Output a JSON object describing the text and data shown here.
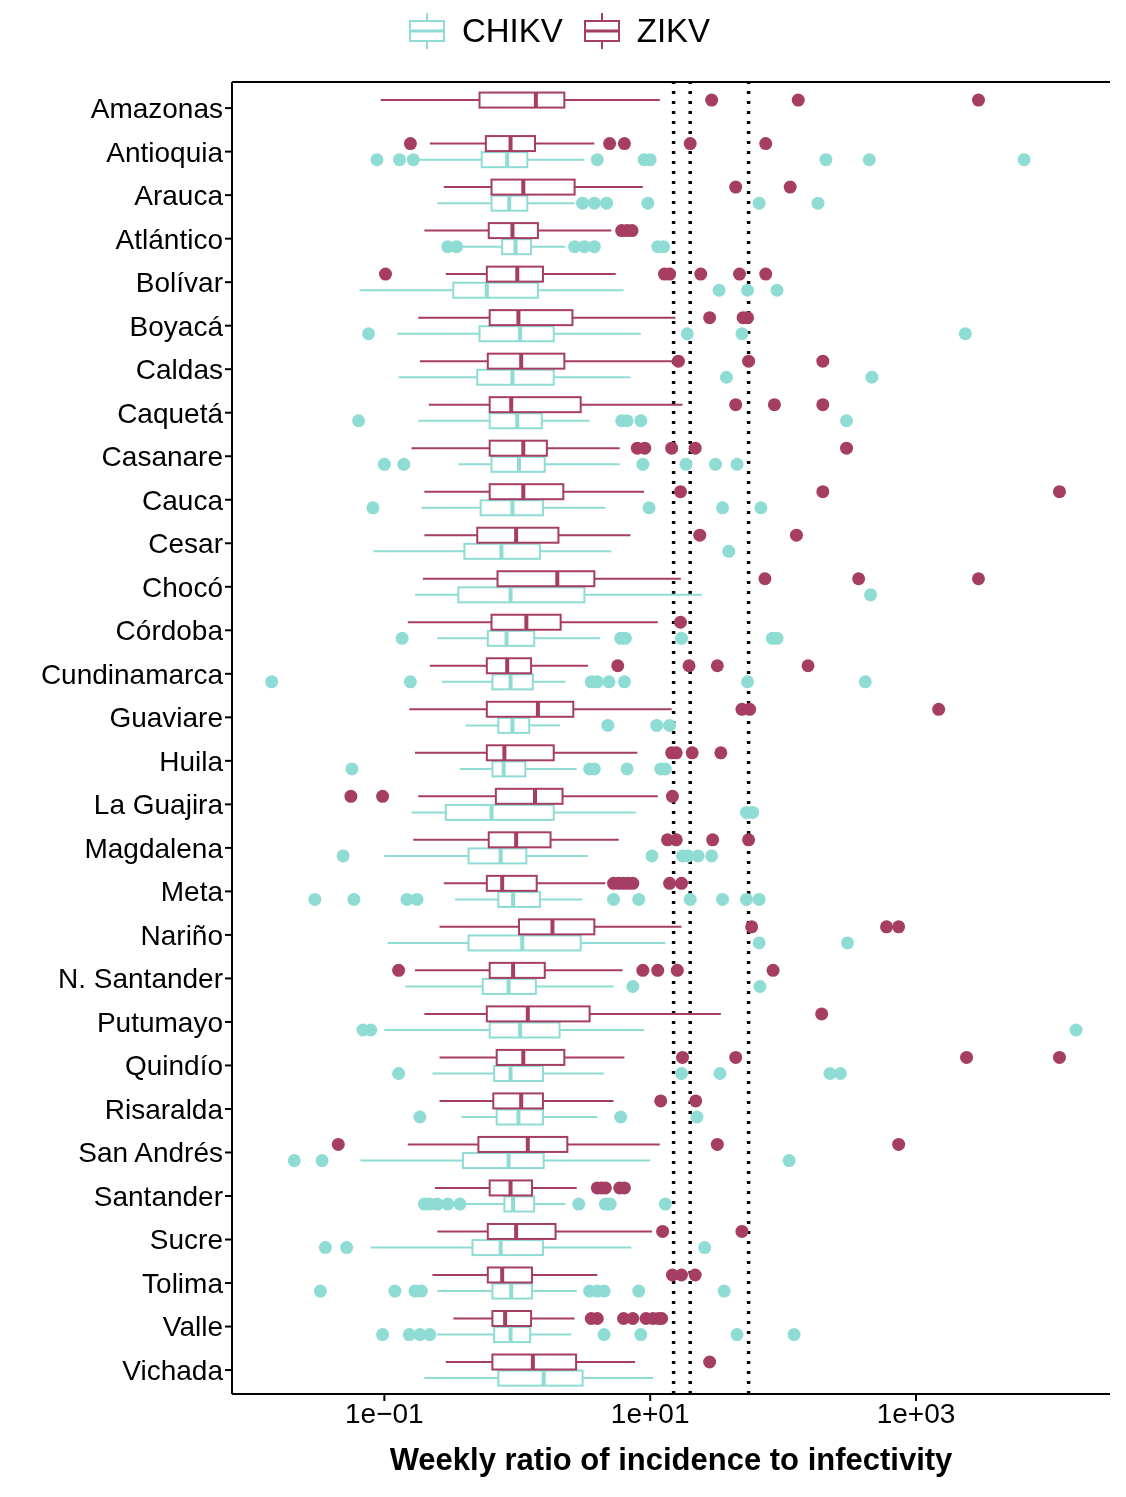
{
  "chart_data": {
    "type": "box",
    "orientation": "horizontal",
    "log": "x",
    "xlabel": "Weekly ratio of incidence to infectivity",
    "legend": "top",
    "xlim": [
      0.00714,
      28800
    ],
    "xticks": [
      {
        "value": 0.1,
        "label": "1e−01"
      },
      {
        "value": 10,
        "label": "1e+01"
      },
      {
        "value": 1000,
        "label": "1e+03"
      }
    ],
    "categories": [
      "Amazonas",
      "Antioquia",
      "Arauca",
      "Atlántico",
      "Bolívar",
      "Boyacá",
      "Caldas",
      "Caquetá",
      "Casanare",
      "Cauca",
      "Cesar",
      "Chocó",
      "Córdoba",
      "Cundinamarca",
      "Guaviare",
      "Huila",
      "La Guajira",
      "Magdalena",
      "Meta",
      "Nariño",
      "N. Santander",
      "Putumayo",
      "Quindío",
      "Risaralda",
      "San Andrés",
      "Santander",
      "Sucre",
      "Tolima",
      "Valle",
      "Vichada"
    ],
    "ref_lines": [
      {
        "axis": "x",
        "value": 15,
        "line_style": "dotted",
        "color": "#000000"
      },
      {
        "axis": "x",
        "value": 20,
        "line_style": "dotted",
        "color": "#000000"
      },
      {
        "axis": "x",
        "value": 55,
        "line_style": "dotted",
        "color": "#000000"
      }
    ],
    "series": [
      {
        "name": "CHIKV",
        "color": "#8fdcd5",
        "boxes": [
          null,
          {
            "low": 0.18,
            "q1": 0.54,
            "median": 0.84,
            "q3": 1.19,
            "high": 3.2,
            "outliers": [
              0.088,
              0.13,
              0.165,
              4.0,
              9.0,
              10,
              210,
              445,
              6500
            ]
          },
          {
            "low": 0.25,
            "q1": 0.64,
            "median": 0.87,
            "q3": 1.19,
            "high": 2.7,
            "outliers": [
              3.1,
              3.8,
              4.7,
              9.6,
              66,
              183
            ]
          },
          {
            "low": 0.28,
            "q1": 0.77,
            "median": 0.97,
            "q3": 1.27,
            "high": 2.3,
            "outliers": [
              0.3,
              0.35,
              2.7,
              3.2,
              3.8,
              11.4,
              12.6
            ]
          },
          {
            "low": 0.065,
            "q1": 0.33,
            "median": 0.59,
            "q3": 1.43,
            "high": 6.3,
            "outliers": [
              33,
              54,
              90
            ]
          },
          {
            "low": 0.125,
            "q1": 0.52,
            "median": 1.05,
            "q3": 1.88,
            "high": 8.5,
            "outliers": [
              0.076,
              19,
              49,
              2350
            ]
          },
          {
            "low": 0.128,
            "q1": 0.5,
            "median": 0.92,
            "q3": 1.88,
            "high": 7.1,
            "outliers": [
              37.5,
              465
            ]
          },
          {
            "low": 0.18,
            "q1": 0.62,
            "median": 1.0,
            "q3": 1.53,
            "high": 3.5,
            "outliers": [
              0.064,
              6.1,
              6.7,
              8.5,
              300
            ]
          },
          {
            "low": 0.36,
            "q1": 0.64,
            "median": 1.03,
            "q3": 1.61,
            "high": 5.9,
            "outliers": [
              0.1,
              0.14,
              8.8,
              18.6,
              31,
              45
            ]
          },
          {
            "low": 0.19,
            "q1": 0.53,
            "median": 0.92,
            "q3": 1.56,
            "high": 4.6,
            "outliers": [
              0.082,
              9.8,
              35,
              68
            ]
          },
          {
            "low": 0.083,
            "q1": 0.4,
            "median": 0.76,
            "q3": 1.48,
            "high": 5.1,
            "outliers": [
              39
            ]
          },
          {
            "low": 0.17,
            "q1": 0.36,
            "median": 0.89,
            "q3": 3.2,
            "high": 24.5,
            "outliers": [
              455
            ]
          },
          {
            "low": 0.25,
            "q1": 0.6,
            "median": 0.83,
            "q3": 1.34,
            "high": 4.2,
            "outliers": [
              0.136,
              6.0,
              6.5,
              17.2,
              83,
              90
            ]
          },
          {
            "low": 0.27,
            "q1": 0.65,
            "median": 0.89,
            "q3": 1.31,
            "high": 2.3,
            "outliers": [
              0.0142,
              0.157,
              3.6,
              4.0,
              4.9,
              6.4,
              54,
              415
            ]
          },
          {
            "low": 0.41,
            "q1": 0.72,
            "median": 0.92,
            "q3": 1.23,
            "high": 2.1,
            "outliers": [
              4.8,
              11.2,
              14
            ]
          },
          {
            "low": 0.37,
            "q1": 0.65,
            "median": 0.79,
            "q3": 1.15,
            "high": 2.8,
            "outliers": [
              0.057,
              3.5,
              3.8,
              6.7,
              12,
              13
            ]
          },
          {
            "low": 0.16,
            "q1": 0.29,
            "median": 0.64,
            "q3": 1.88,
            "high": 7.8,
            "outliers": [
              53,
              59
            ]
          },
          {
            "low": 0.1,
            "q1": 0.43,
            "median": 0.75,
            "q3": 1.17,
            "high": 3.4,
            "outliers": [
              0.049,
              10.3,
              17.5,
              19.3,
              22.9,
              29
            ]
          },
          {
            "low": 0.34,
            "q1": 0.72,
            "median": 0.93,
            "q3": 1.48,
            "high": 3.1,
            "outliers": [
              0.03,
              0.059,
              0.148,
              0.176,
              5.3,
              8.2,
              20,
              35,
              53,
              66
            ]
          },
          {
            "low": 0.106,
            "q1": 0.43,
            "median": 1.09,
            "q3": 3.0,
            "high": 13,
            "outliers": [
              66,
              305
            ]
          },
          {
            "low": 0.143,
            "q1": 0.55,
            "median": 0.86,
            "q3": 1.38,
            "high": 5.3,
            "outliers": [
              7.4,
              67
            ]
          },
          {
            "low": 0.1,
            "q1": 0.62,
            "median": 1.05,
            "q3": 2.08,
            "high": 9.0,
            "outliers": [
              0.069,
              0.079,
              16000
            ]
          },
          {
            "low": 0.23,
            "q1": 0.67,
            "median": 0.89,
            "q3": 1.56,
            "high": 4.5,
            "outliers": [
              0.128,
              17.2,
              33.5,
              225,
              270
            ]
          },
          {
            "low": 0.38,
            "q1": 0.7,
            "median": 1.02,
            "q3": 1.56,
            "high": 4.0,
            "outliers": [
              0.185,
              6.0,
              22.5
            ]
          },
          {
            "low": 0.066,
            "q1": 0.39,
            "median": 0.86,
            "q3": 1.58,
            "high": 10,
            "outliers": [
              0.021,
              0.034,
              111
            ]
          },
          {
            "low": 0.41,
            "q1": 0.8,
            "median": 0.93,
            "q3": 1.34,
            "high": 2.3,
            "outliers": [
              0.2,
              0.22,
              0.25,
              0.3,
              0.37,
              2.9,
              4.6,
              5.0,
              13
            ]
          },
          {
            "low": 0.079,
            "q1": 0.46,
            "median": 0.75,
            "q3": 1.56,
            "high": 7.2,
            "outliers": [
              0.036,
              0.052,
              25.7
            ]
          },
          {
            "low": 0.25,
            "q1": 0.65,
            "median": 0.9,
            "q3": 1.29,
            "high": 2.8,
            "outliers": [
              0.033,
              0.12,
              0.17,
              0.19,
              3.5,
              4.0,
              4.5,
              8.2,
              36
            ]
          },
          {
            "low": 0.25,
            "q1": 0.67,
            "median": 0.89,
            "q3": 1.25,
            "high": 2.55,
            "outliers": [
              0.097,
              0.154,
              0.185,
              0.22,
              4.5,
              8.5,
              45,
              121
            ]
          },
          {
            "low": 0.2,
            "q1": 0.72,
            "median": 1.58,
            "q3": 3.1,
            "high": 10.5
          }
        ]
      },
      {
        "name": "ZIKV",
        "color": "#a63d63",
        "boxes": [
          {
            "low": 0.094,
            "q1": 0.52,
            "median": 1.38,
            "q3": 2.26,
            "high": 11.8,
            "outliers": [
              29,
              130,
              2950
            ]
          },
          {
            "low": 0.22,
            "q1": 0.58,
            "median": 0.89,
            "q3": 1.36,
            "high": 3.8,
            "outliers": [
              0.157,
              4.95,
              6.4,
              20,
              74
            ]
          },
          {
            "low": 0.28,
            "q1": 0.64,
            "median": 1.11,
            "q3": 2.7,
            "high": 8.8,
            "outliers": [
              44,
              113
            ]
          },
          {
            "low": 0.2,
            "q1": 0.61,
            "median": 0.92,
            "q3": 1.43,
            "high": 5.1,
            "outliers": [
              6.1,
              6.7,
              7.3
            ]
          },
          {
            "low": 0.29,
            "q1": 0.59,
            "median": 1.0,
            "q3": 1.56,
            "high": 5.5,
            "outliers": [
              0.102,
              12.8,
              14,
              24,
              47,
              74
            ]
          },
          {
            "low": 0.18,
            "q1": 0.62,
            "median": 1.02,
            "q3": 2.6,
            "high": 15.5,
            "outliers": [
              28,
              50,
              54
            ]
          },
          {
            "low": 0.185,
            "q1": 0.6,
            "median": 1.07,
            "q3": 2.26,
            "high": 15.5,
            "outliers": [
              16.3,
              55,
              199
            ]
          },
          {
            "low": 0.216,
            "q1": 0.62,
            "median": 0.9,
            "q3": 3.0,
            "high": 17.5,
            "outliers": [
              44,
              86,
              199
            ]
          },
          {
            "low": 0.16,
            "q1": 0.62,
            "median": 1.11,
            "q3": 1.67,
            "high": 5.9,
            "outliers": [
              8.0,
              9.1,
              14.5,
              21.8,
              300
            ]
          },
          {
            "low": 0.2,
            "q1": 0.62,
            "median": 1.11,
            "q3": 2.22,
            "high": 9.0,
            "outliers": [
              16.9,
              199,
              12000
            ]
          },
          {
            "low": 0.2,
            "q1": 0.5,
            "median": 0.98,
            "q3": 2.04,
            "high": 7.1,
            "outliers": [
              23.6,
              126
            ]
          },
          {
            "low": 0.195,
            "q1": 0.71,
            "median": 2.0,
            "q3": 3.8,
            "high": 17,
            "outliers": [
              73,
              370,
              2950
            ]
          },
          {
            "low": 0.15,
            "q1": 0.64,
            "median": 1.17,
            "q3": 2.12,
            "high": 11.4,
            "outliers": [
              16.9
            ]
          },
          {
            "low": 0.22,
            "q1": 0.59,
            "median": 0.84,
            "q3": 1.27,
            "high": 3.4,
            "outliers": [
              5.7,
              19.6,
              32,
              154
            ]
          },
          {
            "low": 0.154,
            "q1": 0.59,
            "median": 1.43,
            "q3": 2.64,
            "high": 14.5,
            "outliers": [
              49,
              56,
              1480
            ]
          },
          {
            "low": 0.17,
            "q1": 0.59,
            "median": 0.8,
            "q3": 1.88,
            "high": 8.0,
            "outliers": [
              14.5,
              15.7,
              20.7,
              34
            ]
          },
          {
            "low": 0.18,
            "q1": 0.69,
            "median": 1.36,
            "q3": 2.19,
            "high": 11.4,
            "outliers": [
              0.056,
              0.097,
              14.7
            ]
          },
          {
            "low": 0.165,
            "q1": 0.61,
            "median": 0.98,
            "q3": 1.78,
            "high": 5.8,
            "outliers": [
              13.5,
              15.7,
              29.5,
              55
            ]
          },
          {
            "low": 0.28,
            "q1": 0.59,
            "median": 0.77,
            "q3": 1.4,
            "high": 4.6,
            "outliers": [
              5.3,
              5.8,
              6.3,
              6.8,
              7.4,
              14,
              17.2
            ]
          },
          {
            "low": 0.26,
            "q1": 1.03,
            "median": 1.84,
            "q3": 3.8,
            "high": 17.2,
            "outliers": [
              58,
              600,
              740
            ]
          },
          {
            "low": 0.17,
            "q1": 0.62,
            "median": 0.93,
            "q3": 1.61,
            "high": 6.2,
            "outliers": [
              0.128,
              8.8,
              11.4,
              16,
              84
            ]
          },
          {
            "low": 0.2,
            "q1": 0.59,
            "median": 1.2,
            "q3": 3.5,
            "high": 34,
            "outliers": [
              195
            ]
          },
          {
            "low": 0.26,
            "q1": 0.7,
            "median": 1.11,
            "q3": 2.26,
            "high": 6.4,
            "outliers": [
              17.5,
              44,
              2400,
              12000
            ]
          },
          {
            "low": 0.26,
            "q1": 0.66,
            "median": 1.07,
            "q3": 1.56,
            "high": 5.3,
            "outliers": [
              12,
              22
            ]
          },
          {
            "low": 0.15,
            "q1": 0.51,
            "median": 1.2,
            "q3": 2.38,
            "high": 11.8,
            "outliers": [
              0.045,
              32,
              740
            ]
          },
          {
            "low": 0.24,
            "q1": 0.62,
            "median": 0.89,
            "q3": 1.29,
            "high": 2.8,
            "outliers": [
              4.0,
              4.3,
              4.6,
              5.9,
              6.4
            ]
          },
          {
            "low": 0.25,
            "q1": 0.6,
            "median": 0.98,
            "q3": 1.94,
            "high": 10.3,
            "outliers": [
              12.4,
              49
            ]
          },
          {
            "low": 0.23,
            "q1": 0.6,
            "median": 0.77,
            "q3": 1.29,
            "high": 4.0,
            "outliers": [
              14.7,
              17.2,
              21.8
            ]
          },
          {
            "low": 0.33,
            "q1": 0.65,
            "median": 0.81,
            "q3": 1.27,
            "high": 2.7,
            "outliers": [
              3.6,
              4.0,
              6.3,
              7.4,
              9.3,
              10.5,
              11.6,
              12.2
            ]
          },
          {
            "low": 0.29,
            "q1": 0.65,
            "median": 1.31,
            "q3": 2.77,
            "high": 7.7,
            "outliers": [
              28
            ]
          }
        ]
      }
    ]
  }
}
